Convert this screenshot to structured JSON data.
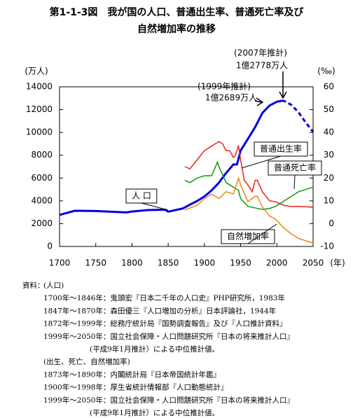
{
  "chart_data": {
    "type": "line",
    "title": "第1-1-3図　我が国の人口、普通出生率、普通死亡率及び",
    "subtitle": "自然増加率の推移",
    "y_label": "(万人)",
    "y2_label": "(‰)",
    "x_label": "(年)",
    "xlim": [
      1700,
      2050
    ],
    "xticks": [
      1700,
      1750,
      1800,
      1850,
      1900,
      1950,
      2000,
      2050
    ],
    "ylim": [
      0,
      14000
    ],
    "yticks": [
      0,
      2000,
      4000,
      6000,
      8000,
      10000,
      12000,
      14000
    ],
    "y2lim": [
      -10,
      60
    ],
    "y2ticks": [
      -10,
      0,
      10,
      20,
      30,
      40,
      50,
      60
    ],
    "series": [
      {
        "name": "人 口",
        "color": "#0000dd",
        "x": [
          1700,
          1721,
          1750,
          1792,
          1800,
          1822,
          1846,
          1850,
          1870,
          1880,
          1890,
          1900,
          1910,
          1920,
          1930,
          1940,
          1945,
          1950,
          1960,
          1970,
          1980,
          1990,
          2000,
          2007
        ],
        "values": [
          2769,
          3128,
          3110,
          2987,
          3065,
          3191,
          3221,
          3050,
          3330,
          3665,
          3990,
          4385,
          4918,
          5596,
          6445,
          7193,
          7200,
          8411,
          9430,
          10467,
          11706,
          12361,
          12693,
          12778
        ]
      },
      {
        "color": "#0000dd",
        "dashed": true,
        "x": [
          2007,
          2010,
          2020,
          2030,
          2040,
          2050
        ],
        "values": [
          12778,
          12762,
          12413,
          11758,
          10852,
          10050
        ]
      },
      {
        "name": "普通出生率",
        "color": "#ee2222",
        "axis": "y2",
        "x": [
          1873,
          1880,
          1890,
          1900,
          1910,
          1920,
          1925,
          1930,
          1935,
          1940,
          1943,
          1947,
          1950,
          1955,
          1960,
          1966,
          1970,
          1973,
          1980,
          1990,
          1998,
          2010,
          2020,
          2030,
          2050
        ],
        "values": [
          25,
          24,
          28,
          32,
          34,
          36,
          35,
          32,
          32,
          29,
          30,
          34.3,
          28,
          19,
          17,
          14,
          19,
          19,
          14,
          10,
          9.6,
          8,
          7.5,
          7.6,
          7.2
        ]
      },
      {
        "name": "普通死亡率",
        "color": "#119911",
        "axis": "y2",
        "x": [
          1873,
          1880,
          1890,
          1900,
          1910,
          1918,
          1920,
          1930,
          1940,
          1947,
          1950,
          1960,
          1970,
          1980,
          1990,
          1998,
          2010,
          2020,
          2030,
          2050
        ],
        "values": [
          19,
          18,
          20,
          21,
          21,
          27,
          25,
          18,
          16,
          14.6,
          11,
          7.6,
          6.9,
          6.2,
          6.7,
          7.5,
          10,
          12,
          14,
          16
        ]
      },
      {
        "name": "自然増加率",
        "color": "#ee8811",
        "axis": "y2",
        "x": [
          1873,
          1890,
          1900,
          1910,
          1920,
          1930,
          1940,
          1947,
          1950,
          1960,
          1970,
          1973,
          1980,
          1990,
          1998,
          2010,
          2020,
          2030,
          2050
        ],
        "values": [
          6,
          8,
          11,
          13,
          11,
          14,
          13,
          20,
          17,
          9.6,
          12,
          12,
          7.3,
          3.3,
          2,
          -2,
          -4.5,
          -6.5,
          -8.5
        ]
      }
    ],
    "annotations": [
      "(2007年推計)",
      "1億2778万人",
      "(1999年推計)",
      "1億2689万人"
    ],
    "notes_label": "資料：",
    "notes": [
      "(人口)",
      "1700年～1846年：鬼頭宏『日本二千年の人口史』PHP研究所，1983年",
      "1847年～1870年：森田優三『人口増加の分析』日本評論社，1944年",
      "1872年～1999年：総務庁統計局『国勢調査報告』及び『人口推計資料』",
      "1999年～2050年：国立社会保障・人口問題研究所『日本の将来推計人口』",
      "(平成9年1月推計）による中位推計値。",
      "(出生、死亡、自然増加率)",
      "1873年～1890年：内閣統計局『日本帝国統計年鑑』",
      "1900年～1998年：厚生省統計情報部『人口動態統計』",
      "1999年～2050年：国立社会保障・人口問題研究所『日本の将来推計人口』",
      "(平成9年1月推計）による中位推計値。"
    ]
  }
}
